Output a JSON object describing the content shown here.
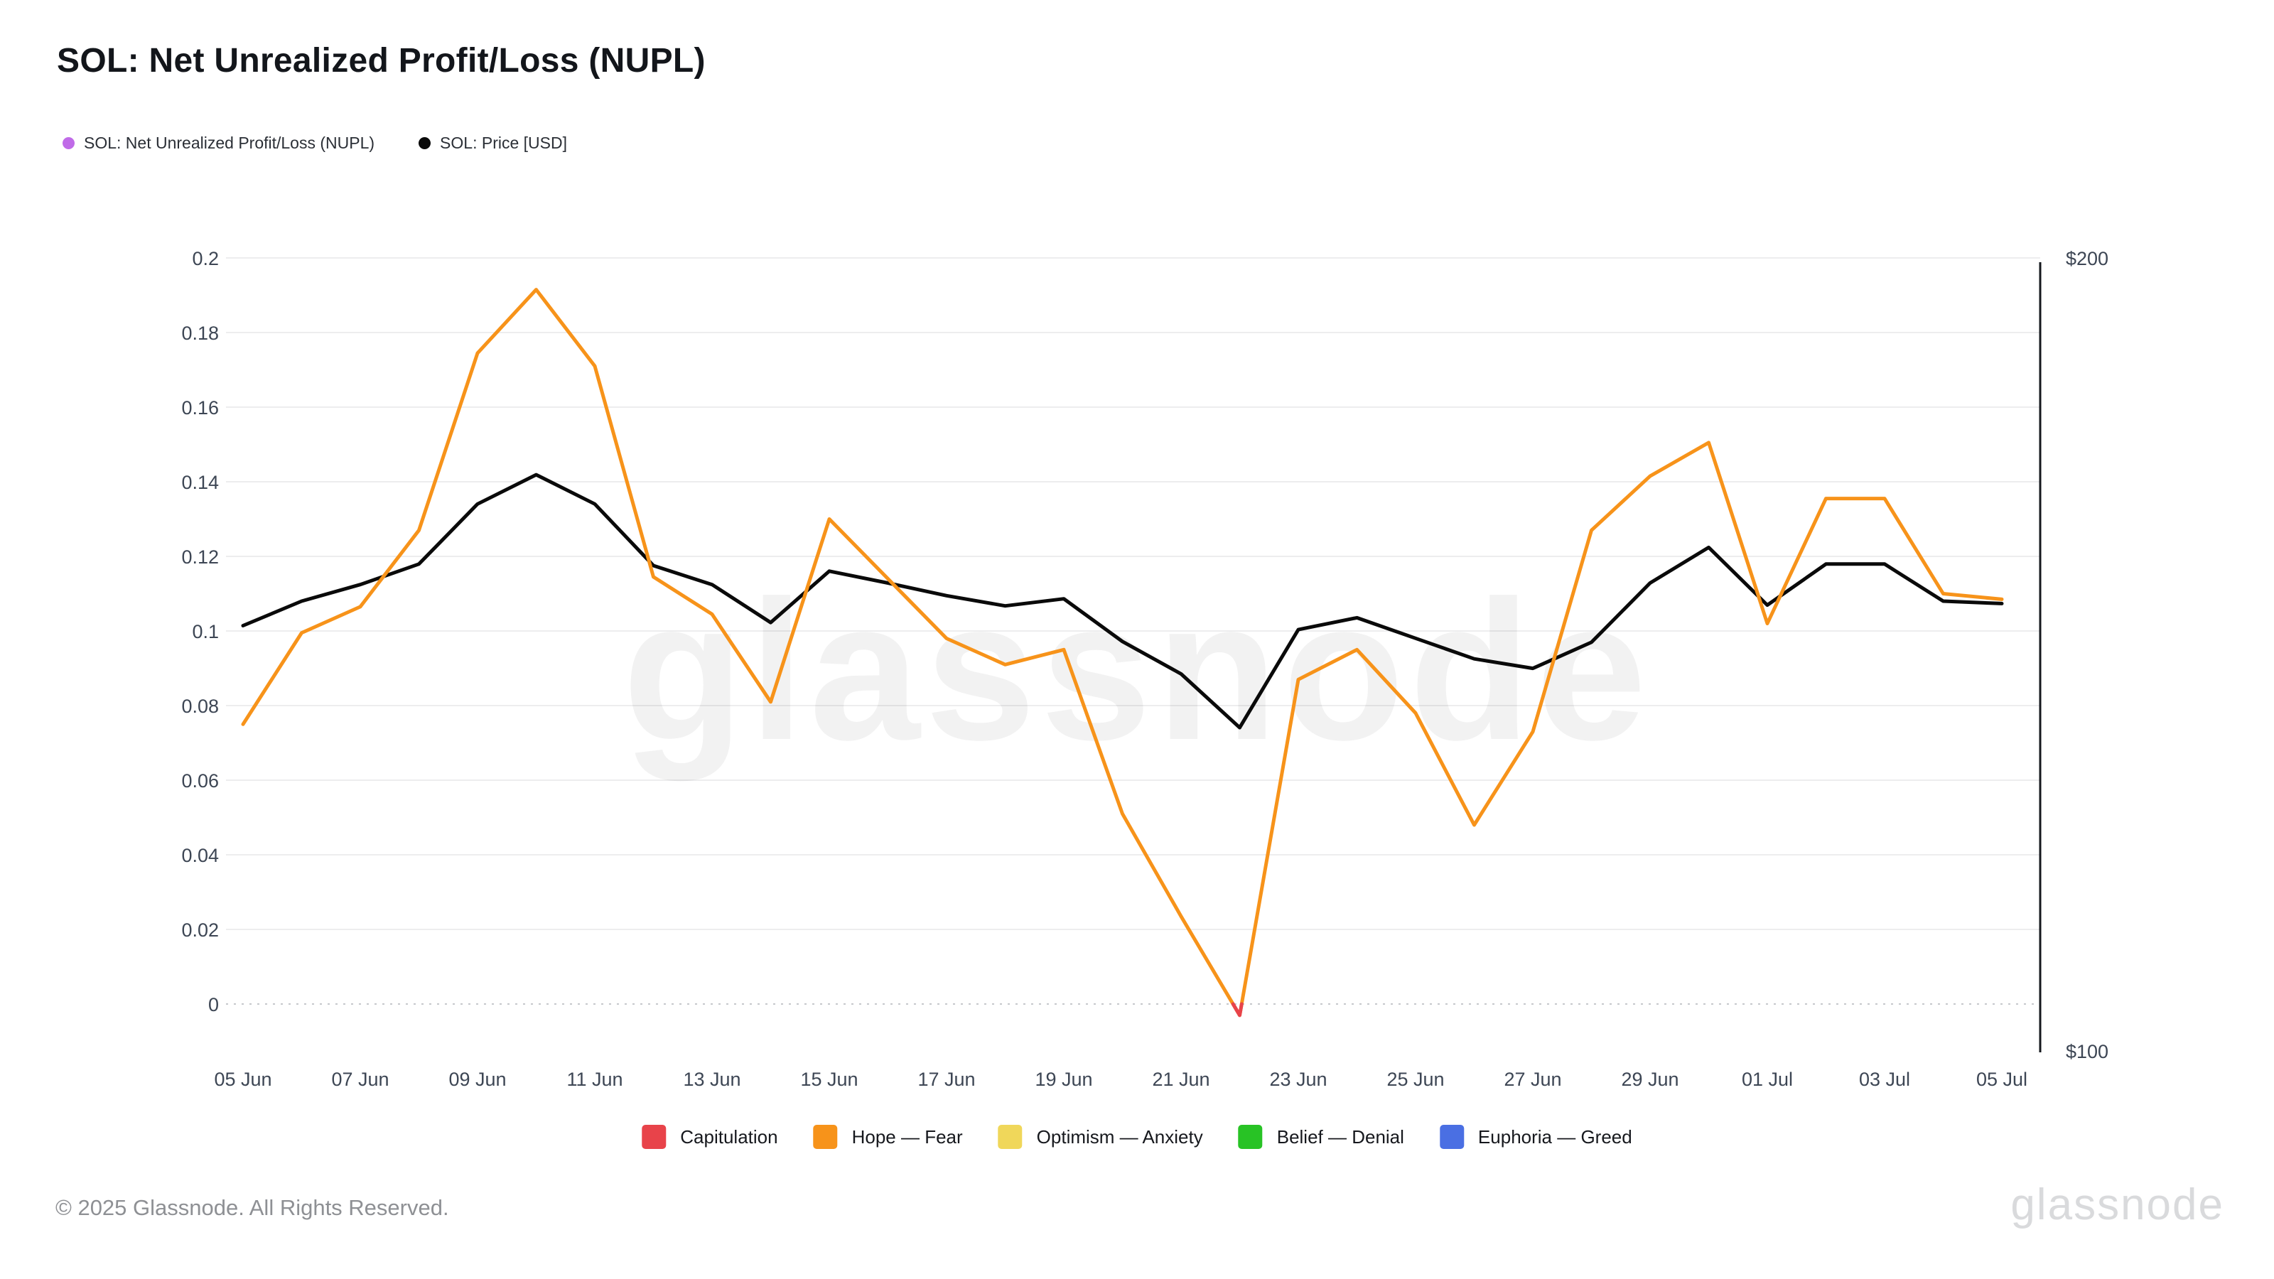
{
  "page": {
    "title": "SOL: Net Unrealized Profit/Loss (NUPL)"
  },
  "top_legend": {
    "items": [
      {
        "label": "SOL: Net Unrealized Profit/Loss (NUPL)",
        "color": "#c06be8"
      },
      {
        "label": "SOL: Price [USD]",
        "color": "#0a0a0a"
      }
    ]
  },
  "bottom_legend": {
    "items": [
      {
        "label": "Capitulation",
        "color": "#e8434a"
      },
      {
        "label": "Hope — Fear",
        "color": "#f7931a"
      },
      {
        "label": "Optimism — Anxiety",
        "color": "#f0d75a"
      },
      {
        "label": "Belief — Denial",
        "color": "#28c325"
      },
      {
        "label": "Euphoria — Greed",
        "color": "#4a6fe3"
      }
    ]
  },
  "watermark": "glassnode",
  "footer": {
    "copyright": "© 2025 Glassnode. All Rights Reserved.",
    "brand": "glassnode"
  },
  "chart_data": {
    "type": "line",
    "title": "SOL: Net Unrealized Profit/Loss (NUPL)",
    "grid": true,
    "legend_position": "bottom",
    "x": [
      "05 Jun",
      "06 Jun",
      "07 Jun",
      "08 Jun",
      "09 Jun",
      "10 Jun",
      "11 Jun",
      "12 Jun",
      "13 Jun",
      "14 Jun",
      "15 Jun",
      "16 Jun",
      "17 Jun",
      "18 Jun",
      "19 Jun",
      "20 Jun",
      "21 Jun",
      "22 Jun",
      "23 Jun",
      "24 Jun",
      "25 Jun",
      "26 Jun",
      "27 Jun",
      "28 Jun",
      "29 Jun",
      "30 Jun",
      "01 Jul",
      "02 Jul",
      "03 Jul",
      "04 Jul",
      "05 Jul"
    ],
    "x_tick_every": 2,
    "series": [
      {
        "name": "SOL: Net Unrealized Profit/Loss (NUPL)",
        "axis": "left",
        "color": "#f7931a",
        "negative_color": "#e8434a",
        "values": [
          0.075,
          0.0995,
          0.1065,
          0.127,
          0.1745,
          0.1915,
          0.171,
          0.1145,
          0.1045,
          0.081,
          0.13,
          0.114,
          0.098,
          0.091,
          0.095,
          0.051,
          0.0235,
          -0.003,
          0.087,
          0.095,
          0.078,
          0.048,
          0.073,
          0.127,
          0.1415,
          0.1505,
          0.102,
          0.1355,
          0.1355,
          0.11,
          0.1085
        ]
      },
      {
        "name": "SOL: Price [USD]",
        "axis": "right",
        "color": "#0a0a0a",
        "values": [
          154.0,
          157.1,
          159.2,
          161.8,
          169.4,
          173.1,
          169.4,
          161.6,
          159.2,
          154.4,
          160.9,
          159.4,
          157.8,
          156.5,
          157.4,
          152.0,
          147.9,
          141.1,
          153.5,
          155.0,
          152.4,
          149.8,
          148.6,
          151.9,
          159.4,
          163.9,
          156.6,
          161.8,
          161.8,
          157.1,
          156.8
        ]
      }
    ],
    "left_axis": {
      "range": [
        0,
        0.2
      ],
      "ticks": [
        0.2,
        0.18,
        0.16,
        0.14,
        0.12,
        0.1,
        0.08,
        0.06,
        0.04,
        0.02,
        0
      ],
      "tick_labels": [
        "0.2",
        "0.18",
        "0.16",
        "0.14",
        "0.12",
        "0.1",
        "0.08",
        "0.06",
        "0.04",
        "0.02",
        "0"
      ]
    },
    "right_axis": {
      "range": [
        100,
        200
      ],
      "tick_labels": [
        "$200",
        "$100"
      ]
    }
  }
}
